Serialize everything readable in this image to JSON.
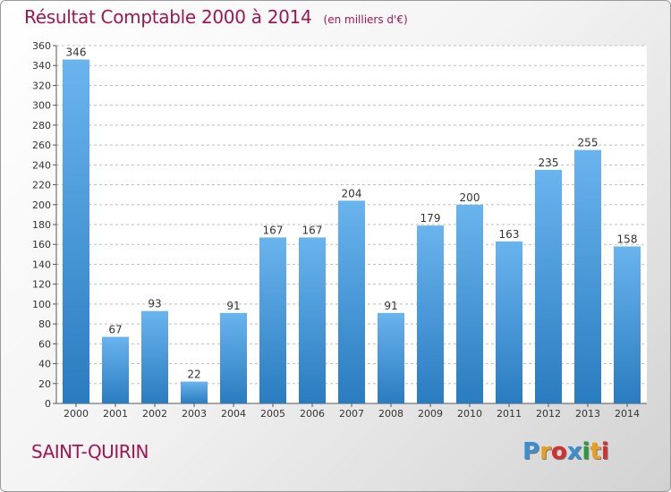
{
  "title": "Résultat Comptable 2000 à 2014",
  "subtitle": "(en milliers d'€)",
  "commune": "SAINT-QUIRIN",
  "brand": {
    "letters": [
      "P",
      "r",
      "o",
      "x",
      "i",
      "t",
      "i"
    ],
    "colors": [
      "#3a8fd0",
      "#e8a020",
      "#d03030",
      "#3a8fd0",
      "#2a9a40",
      "#e8a020",
      "#d03030"
    ]
  },
  "colors": {
    "bar_top": "#6ab4ee",
    "bar_bottom": "#2a7cc0",
    "grid": "#bfbfbf",
    "plot_bg": "#ffffff"
  },
  "chart_data": {
    "type": "bar",
    "title": "Résultat Comptable 2000 à 2014",
    "subtitle": "(en milliers d'€)",
    "categories": [
      "2000",
      "2001",
      "2002",
      "2003",
      "2004",
      "2005",
      "2006",
      "2007",
      "2008",
      "2009",
      "2010",
      "2011",
      "2012",
      "2013",
      "2014"
    ],
    "values": [
      346,
      67,
      93,
      22,
      91,
      167,
      167,
      204,
      91,
      179,
      200,
      163,
      235,
      255,
      158
    ],
    "ylim": [
      0,
      360
    ],
    "yticks": [
      0,
      20,
      40,
      60,
      80,
      100,
      120,
      140,
      160,
      180,
      200,
      220,
      240,
      260,
      280,
      300,
      320,
      340,
      360
    ],
    "grid": true,
    "data_labels": true,
    "legend": "none"
  }
}
